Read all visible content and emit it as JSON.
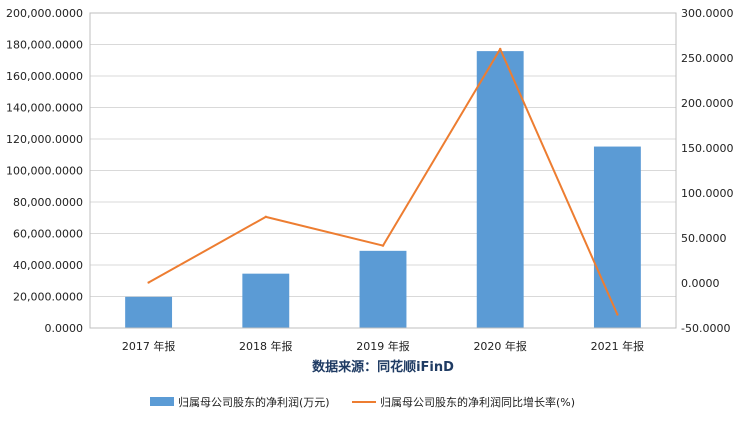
{
  "chart_data": {
    "type": "bar+line",
    "categories": [
      "2017 年报",
      "2018 年报",
      "2019 年报",
      "2020 年报",
      "2021 年报"
    ],
    "series": [
      {
        "name": "归属母公司股东的净利润(万元)",
        "type": "bar",
        "axis": "left",
        "color": "#5b9bd5",
        "values": [
          19800000,
          34500000,
          49000000,
          175800000,
          115200000
        ]
      },
      {
        "name": "归属母公司股东的净利润同比增长率(%)",
        "type": "line",
        "axis": "right",
        "color": "#ed7d31",
        "values": [
          0.5,
          73.5,
          41.5,
          260.0,
          -35.0
        ]
      }
    ],
    "y_left": {
      "ylim": [
        0,
        200000000
      ],
      "ticks": [
        0,
        20000000,
        40000000,
        60000000,
        80000000,
        100000000,
        120000000,
        140000000,
        160000000,
        180000000,
        200000000
      ],
      "tick_labels": [
        "0.0000",
        "20,000.0000",
        "40,000.0000",
        "60,000.0000",
        "80,000.0000",
        "100,000.0000",
        "120,000.0000",
        "140,000.0000",
        "160,000.0000",
        "180,000.0000",
        "200,000.0000"
      ]
    },
    "y_right": {
      "ylim": [
        -50,
        300
      ],
      "ticks": [
        -50,
        0,
        50,
        100,
        150,
        200,
        250,
        300
      ],
      "tick_labels": [
        "-50.0000",
        "0.0000",
        "50.0000",
        "100.0000",
        "150.0000",
        "200.0000",
        "250.0000",
        "300.0000"
      ]
    },
    "grid": true,
    "legend_position": "bottom",
    "source_text": "数据来源：同花顺iFinD"
  }
}
